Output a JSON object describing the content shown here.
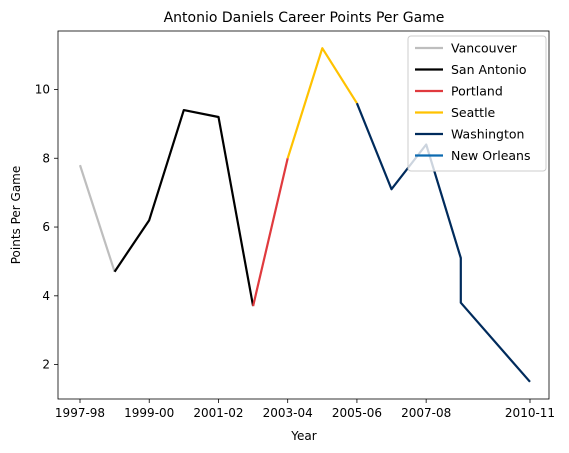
{
  "chart_data": {
    "type": "line",
    "title": "Antonio Daniels Career Points Per Game",
    "xlabel": "Year",
    "ylabel": "Points Per Game",
    "x_ticks": [
      "1997-98",
      "1999-00",
      "2001-02",
      "2003-04",
      "2005-06",
      "2007-08",
      "2010-11"
    ],
    "y_ticks": [
      2,
      4,
      6,
      8,
      10
    ],
    "ylim": [
      1.0,
      11.7
    ],
    "grid": false,
    "legend_position": "top-right",
    "series": [
      {
        "name": "Vancouver",
        "color": "#bebebe",
        "points": [
          {
            "x": "1997-98",
            "y": 7.8
          },
          {
            "x": "1998-99",
            "y": 4.7
          }
        ]
      },
      {
        "name": "San Antonio",
        "color": "#000000",
        "points": [
          {
            "x": "1998-99",
            "y": 4.7
          },
          {
            "x": "1999-00",
            "y": 6.2
          },
          {
            "x": "2000-01",
            "y": 9.4
          },
          {
            "x": "2001-02",
            "y": 9.2
          },
          {
            "x": "2002-03",
            "y": 3.7
          }
        ]
      },
      {
        "name": "Portland",
        "color": "#e03a3e",
        "points": [
          {
            "x": "2002-03",
            "y": 3.7
          },
          {
            "x": "2003-04",
            "y": 8.0
          }
        ]
      },
      {
        "name": "Seattle",
        "color": "#ffc200",
        "points": [
          {
            "x": "2003-04",
            "y": 8.0
          },
          {
            "x": "2004-05",
            "y": 11.2
          },
          {
            "x": "2005-06",
            "y": 9.6
          }
        ]
      },
      {
        "name": "Washington",
        "color": "#002b5c",
        "points": [
          {
            "x": "2005-06",
            "y": 9.6
          },
          {
            "x": "2006-07",
            "y": 7.1
          },
          {
            "x": "2007-08",
            "y": 8.4
          },
          {
            "x": "2008-09",
            "y": 5.1
          },
          {
            "x": "2008-09",
            "y": 3.8
          },
          {
            "x": "2010-11",
            "y": 1.5
          }
        ]
      },
      {
        "name": "New Orleans",
        "color": "#0c6ab0",
        "points": []
      }
    ]
  }
}
